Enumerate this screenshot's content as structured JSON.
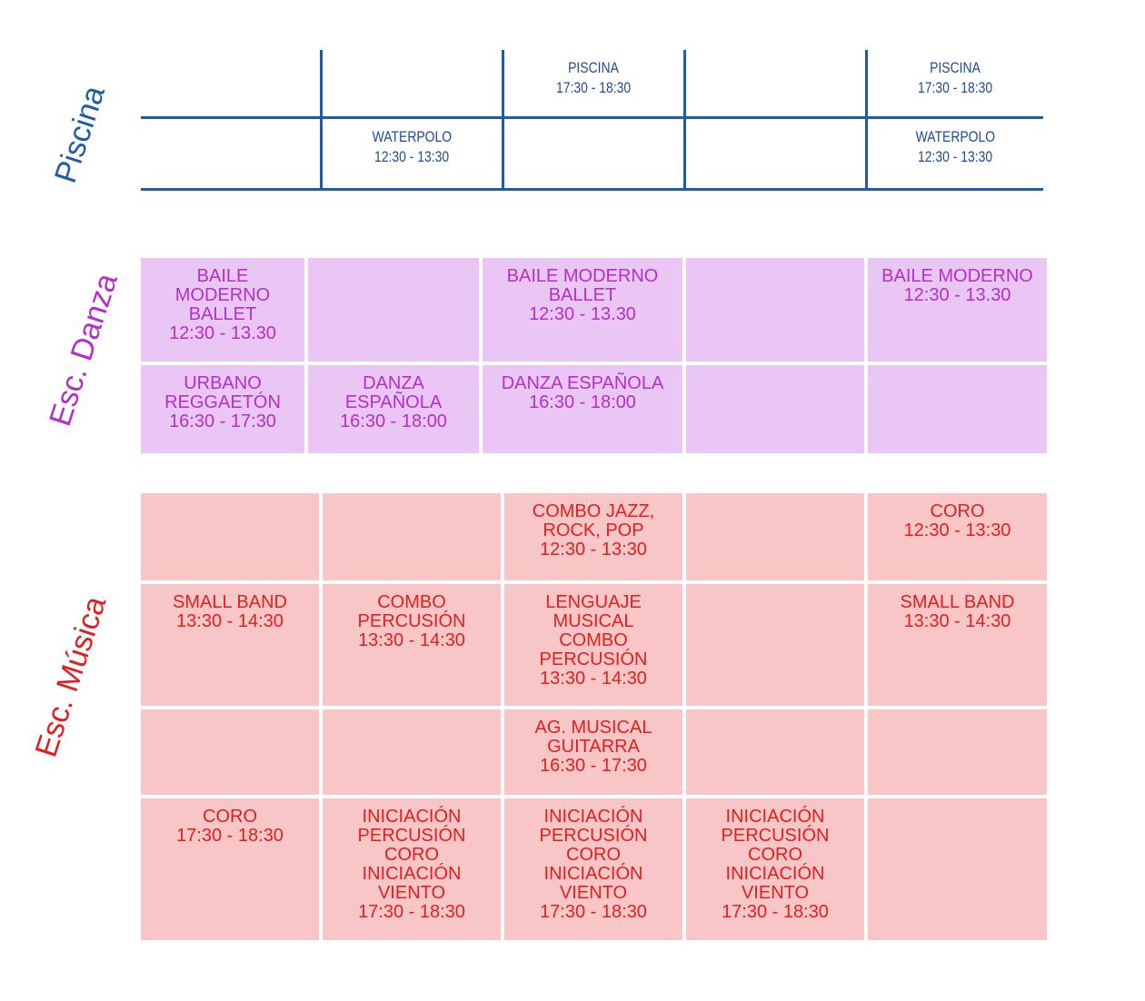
{
  "piscina": {
    "label": "Piscina",
    "color": "#1f5ca6",
    "rows": [
      [
        [],
        [],
        [
          "PISCINA",
          "17:30  -  18:30"
        ],
        [],
        [
          "PISCINA",
          "17:30  -  18:30"
        ]
      ],
      [
        [],
        [
          "WATERPOLO",
          "12:30  -  13:30"
        ],
        [],
        [],
        [
          "WATERPOLO",
          "12:30  -  13:30"
        ]
      ]
    ]
  },
  "danza": {
    "label": "Esc. Danza",
    "color": "#b32fc9",
    "cell_bg": "#e9c6f3",
    "rows": [
      [
        [
          "BAILE",
          "MODERNO",
          "BALLET",
          "12:30 - 13.30"
        ],
        [],
        [
          "BAILE MODERNO",
          "BALLET",
          "12:30 - 13.30"
        ],
        [],
        [
          "BAILE MODERNO",
          "12:30 - 13.30"
        ]
      ],
      [
        [
          "URBANO",
          "REGGAETÓN",
          "16:30 - 17:30"
        ],
        [
          "DANZA",
          "ESPAÑOLA",
          "16:30 - 18:00"
        ],
        [
          "DANZA ESPAÑOLA",
          "16:30 - 18:00"
        ],
        [],
        []
      ]
    ]
  },
  "musica": {
    "label": "Esc. Música",
    "color": "#e0201f",
    "cell_bg": "#f8c6c6",
    "rows": [
      [
        [],
        [],
        [
          "COMBO JAZZ,",
          "ROCK, POP",
          "12:30 - 13:30"
        ],
        [],
        [
          "CORO",
          "12:30 - 13:30"
        ]
      ],
      [
        [
          "SMALL BAND",
          "13:30 - 14:30"
        ],
        [
          "COMBO",
          "PERCUSIÓN",
          "13:30 - 14:30"
        ],
        [
          "LENGUAJE",
          "MUSICAL",
          "COMBO",
          "PERCUSIÓN",
          "13:30 - 14:30"
        ],
        [],
        [
          "SMALL BAND",
          "13:30 - 14:30"
        ]
      ],
      [
        [],
        [],
        [
          "AG. MUSICAL",
          "GUITARRA",
          "16:30 - 17:30"
        ],
        [],
        []
      ],
      [
        [
          "CORO",
          "17:30 - 18:30"
        ],
        [
          "INICIACIÓN",
          "PERCUSIÓN",
          "CORO",
          "INICIACIÓN",
          "VIENTO",
          "17:30 - 18:30"
        ],
        [
          "INICIACIÓN",
          "PERCUSIÓN",
          "CORO",
          "INICIACIÓN",
          "VIENTO",
          "17:30 - 18:30"
        ],
        [
          "INICIACIÓN",
          "PERCUSIÓN",
          "CORO",
          "INICIACIÓN",
          "VIENTO",
          "17:30 - 18:30"
        ],
        []
      ]
    ]
  }
}
